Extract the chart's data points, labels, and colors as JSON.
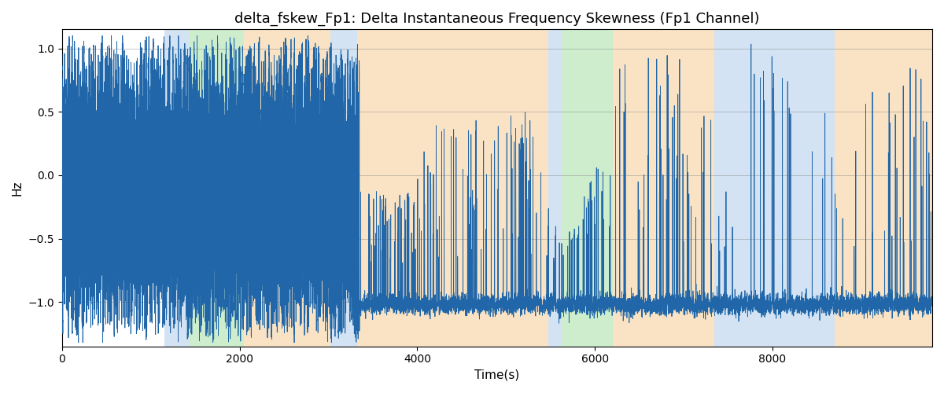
{
  "title": "delta_fskew_Fp1: Delta Instantaneous Frequency Skewness (Fp1 Channel)",
  "xlabel": "Time(s)",
  "ylabel": "Hz",
  "xlim": [
    0,
    9800
  ],
  "ylim": [
    -1.35,
    1.15
  ],
  "yticks": [
    -1.0,
    -0.5,
    0.0,
    0.5,
    1.0
  ],
  "line_color": "#2066a8",
  "line_width": 0.6,
  "title_fontsize": 13,
  "label_fontsize": 11,
  "xticks": [
    0,
    2000,
    4000,
    6000,
    8000
  ],
  "bands": [
    {
      "start": 1150,
      "end": 1430,
      "color": "#a8c8e8",
      "alpha": 0.5
    },
    {
      "start": 1430,
      "end": 2050,
      "color": "#90d890",
      "alpha": 0.45
    },
    {
      "start": 2050,
      "end": 3020,
      "color": "#f5c98a",
      "alpha": 0.5
    },
    {
      "start": 3020,
      "end": 3320,
      "color": "#a8c8e8",
      "alpha": 0.5
    },
    {
      "start": 3320,
      "end": 5480,
      "color": "#f5c98a",
      "alpha": 0.5
    },
    {
      "start": 5480,
      "end": 5620,
      "color": "#a8c8e8",
      "alpha": 0.5
    },
    {
      "start": 5620,
      "end": 6200,
      "color": "#90d890",
      "alpha": 0.45
    },
    {
      "start": 6200,
      "end": 7350,
      "color": "#f5c98a",
      "alpha": 0.5
    },
    {
      "start": 7350,
      "end": 8700,
      "color": "#a8c8e8",
      "alpha": 0.5
    },
    {
      "start": 8700,
      "end": 9800,
      "color": "#f5c98a",
      "alpha": 0.5
    }
  ],
  "seed": 123,
  "n_points": 9800,
  "active_end": 3100,
  "transition_end": 3350
}
